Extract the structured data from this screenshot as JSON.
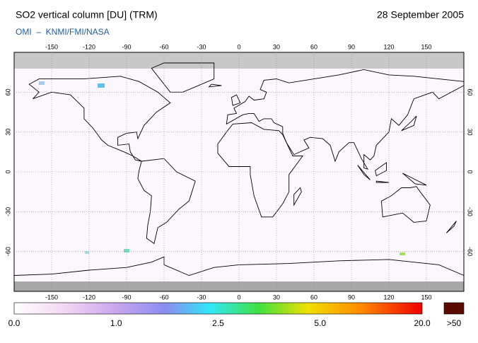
{
  "header": {
    "title": "SO2 vertical column [DU] (TRM)",
    "date": "28 September 2005",
    "subtitle": "OMI  –  KNMI/FMI/NASA"
  },
  "map": {
    "lon_ticks": [
      -150,
      -120,
      -90,
      -60,
      -30,
      0,
      30,
      60,
      90,
      120,
      150
    ],
    "lat_ticks": [
      60,
      30,
      0,
      -30,
      -60
    ]
  },
  "colorbar": {
    "labels": [
      "0.0",
      "1.0",
      "2.5",
      "5.0",
      "20.0"
    ],
    "overflow_label": ">50"
  }
}
